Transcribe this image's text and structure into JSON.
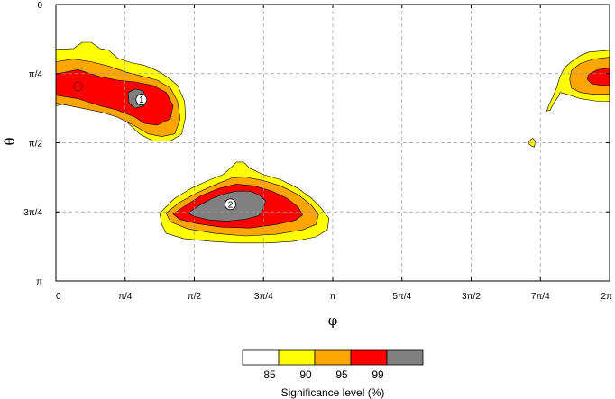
{
  "chart_data": {
    "type": "heatmap",
    "xlabel": "φ",
    "ylabel": "θ",
    "xlim": [
      0,
      6.283185
    ],
    "ylim": [
      0,
      3.141593
    ],
    "y_inverted": true,
    "grid": true,
    "x_ticks": [
      {
        "value": 0,
        "label": "0"
      },
      {
        "value": 0.785398,
        "label": "π/4"
      },
      {
        "value": 1.570796,
        "label": "π/2"
      },
      {
        "value": 2.356194,
        "label": "3π/4"
      },
      {
        "value": 3.141593,
        "label": "π"
      },
      {
        "value": 3.926991,
        "label": "5π/4"
      },
      {
        "value": 4.712389,
        "label": "3π/2"
      },
      {
        "value": 5.497787,
        "label": "7π/4"
      },
      {
        "value": 6.283185,
        "label": "2π"
      }
    ],
    "y_ticks": [
      {
        "value": 0,
        "label": "0"
      },
      {
        "value": 0.785398,
        "label": "π/4"
      },
      {
        "value": 1.570796,
        "label": "π/2"
      },
      {
        "value": 2.356194,
        "label": "3π/4"
      },
      {
        "value": 3.141593,
        "label": "π"
      }
    ],
    "levels": [
      {
        "threshold": 85,
        "color": "#ffff00"
      },
      {
        "threshold": 90,
        "color": "#ffa500"
      },
      {
        "threshold": 95,
        "color": "#ff0000"
      },
      {
        "threshold": 99,
        "color": "#808080"
      }
    ],
    "below_threshold_color": "#ffffff",
    "legend": {
      "title": "Significance level (%)",
      "labels": [
        "85",
        "90",
        "95",
        "99"
      ],
      "placement": "bottom"
    },
    "regions": [
      {
        "id": "region-1",
        "contours": [
          {
            "level": 85,
            "points": [
              [
                0,
                0.51
              ],
              [
                0.2,
                0.5
              ],
              [
                0.3,
                0.43
              ],
              [
                0.4,
                0.43
              ],
              [
                0.5,
                0.5
              ],
              [
                0.6,
                0.52
              ],
              [
                0.7,
                0.61
              ],
              [
                0.85,
                0.66
              ],
              [
                1.0,
                0.69
              ],
              [
                1.1,
                0.73
              ],
              [
                1.2,
                0.78
              ],
              [
                1.3,
                0.85
              ],
              [
                1.38,
                0.92
              ],
              [
                1.46,
                1.1
              ],
              [
                1.47,
                1.28
              ],
              [
                1.43,
                1.47
              ],
              [
                1.3,
                1.55
              ],
              [
                1.1,
                1.55
              ],
              [
                0.95,
                1.47
              ],
              [
                0.8,
                1.33
              ],
              [
                0.55,
                1.2
              ],
              [
                0.3,
                1.17
              ],
              [
                0.1,
                1.13
              ],
              [
                0,
                1.15
              ]
            ]
          },
          {
            "level": 90,
            "points": [
              [
                0,
                0.65
              ],
              [
                0.2,
                0.62
              ],
              [
                0.4,
                0.65
              ],
              [
                0.6,
                0.7
              ],
              [
                0.8,
                0.77
              ],
              [
                1.0,
                0.82
              ],
              [
                1.15,
                0.86
              ],
              [
                1.3,
                0.95
              ],
              [
                1.38,
                1.1
              ],
              [
                1.41,
                1.3
              ],
              [
                1.35,
                1.47
              ],
              [
                1.2,
                1.5
              ],
              [
                1.05,
                1.47
              ],
              [
                0.9,
                1.38
              ],
              [
                0.7,
                1.28
              ],
              [
                0.5,
                1.22
              ],
              [
                0.25,
                1.17
              ],
              [
                0,
                1.12
              ]
            ]
          },
          {
            "level": 95,
            "points": [
              [
                0,
                0.79
              ],
              [
                0.25,
                0.74
              ],
              [
                0.5,
                0.82
              ],
              [
                0.7,
                0.86
              ],
              [
                0.9,
                0.88
              ],
              [
                1.1,
                0.92
              ],
              [
                1.25,
                1.0
              ],
              [
                1.33,
                1.15
              ],
              [
                1.3,
                1.3
              ],
              [
                1.15,
                1.37
              ],
              [
                1.0,
                1.35
              ],
              [
                0.9,
                1.28
              ],
              [
                0.7,
                1.2
              ],
              [
                0.5,
                1.15
              ],
              [
                0.25,
                1.07
              ],
              [
                0,
                1.03
              ]
            ]
          },
          {
            "level": 99,
            "points": [
              [
                0.82,
                1.0
              ],
              [
                0.9,
                0.96
              ],
              [
                0.99,
                0.98
              ],
              [
                1.02,
                1.06
              ],
              [
                1.0,
                1.15
              ],
              [
                0.9,
                1.18
              ],
              [
                0.83,
                1.12
              ]
            ]
          }
        ],
        "marker": {
          "label": "1",
          "x": 0.97,
          "y": 1.08
        }
      },
      {
        "id": "region-2",
        "contours": [
          {
            "level": 85,
            "points": [
              [
                1.18,
                2.37
              ],
              [
                1.35,
                2.2
              ],
              [
                1.55,
                2.08
              ],
              [
                1.75,
                1.99
              ],
              [
                1.9,
                1.93
              ],
              [
                2.0,
                1.84
              ],
              [
                2.05,
                1.79
              ],
              [
                2.13,
                1.79
              ],
              [
                2.2,
                1.86
              ],
              [
                2.35,
                1.93
              ],
              [
                2.55,
                1.99
              ],
              [
                2.75,
                2.09
              ],
              [
                2.9,
                2.2
              ],
              [
                3.0,
                2.3
              ],
              [
                3.1,
                2.43
              ],
              [
                3.08,
                2.56
              ],
              [
                2.95,
                2.64
              ],
              [
                2.7,
                2.69
              ],
              [
                2.4,
                2.71
              ],
              [
                2.05,
                2.71
              ],
              [
                1.75,
                2.69
              ],
              [
                1.45,
                2.66
              ],
              [
                1.25,
                2.6
              ],
              [
                1.2,
                2.5
              ]
            ]
          },
          {
            "level": 90,
            "points": [
              [
                1.25,
                2.37
              ],
              [
                1.4,
                2.25
              ],
              [
                1.6,
                2.14
              ],
              [
                1.8,
                2.05
              ],
              [
                2.0,
                1.97
              ],
              [
                2.15,
                1.96
              ],
              [
                2.35,
                2.0
              ],
              [
                2.55,
                2.06
              ],
              [
                2.75,
                2.16
              ],
              [
                2.9,
                2.28
              ],
              [
                2.98,
                2.39
              ],
              [
                2.95,
                2.5
              ],
              [
                2.8,
                2.56
              ],
              [
                2.5,
                2.61
              ],
              [
                2.15,
                2.63
              ],
              [
                1.8,
                2.6
              ],
              [
                1.5,
                2.55
              ],
              [
                1.3,
                2.47
              ]
            ]
          },
          {
            "level": 95,
            "points": [
              [
                1.33,
                2.38
              ],
              [
                1.48,
                2.28
              ],
              [
                1.65,
                2.17
              ],
              [
                1.85,
                2.09
              ],
              [
                2.05,
                2.04
              ],
              [
                2.25,
                2.06
              ],
              [
                2.45,
                2.12
              ],
              [
                2.62,
                2.2
              ],
              [
                2.75,
                2.3
              ],
              [
                2.8,
                2.39
              ],
              [
                2.72,
                2.45
              ],
              [
                2.5,
                2.5
              ],
              [
                2.2,
                2.54
              ],
              [
                1.88,
                2.53
              ],
              [
                1.6,
                2.49
              ],
              [
                1.4,
                2.44
              ]
            ]
          },
          {
            "level": 99,
            "points": [
              [
                1.5,
                2.37
              ],
              [
                1.63,
                2.28
              ],
              [
                1.78,
                2.2
              ],
              [
                1.92,
                2.15
              ],
              [
                2.05,
                2.12
              ],
              [
                2.2,
                2.12
              ],
              [
                2.3,
                2.16
              ],
              [
                2.38,
                2.23
              ],
              [
                2.35,
                2.33
              ],
              [
                2.3,
                2.4
              ],
              [
                2.15,
                2.44
              ],
              [
                1.95,
                2.46
              ],
              [
                1.75,
                2.45
              ],
              [
                1.58,
                2.41
              ]
            ]
          }
        ],
        "marker": {
          "label": "2",
          "x": 1.98,
          "y": 2.27
        }
      },
      {
        "id": "region-3",
        "contours": [
          {
            "level": 85,
            "points": [
              [
                6.283,
                0.52
              ],
              [
                6.05,
                0.54
              ],
              [
                5.95,
                0.58
              ],
              [
                5.85,
                0.65
              ],
              [
                5.77,
                0.72
              ],
              [
                5.72,
                0.82
              ],
              [
                5.68,
                0.95
              ],
              [
                5.64,
                1.05
              ],
              [
                5.6,
                1.13
              ],
              [
                5.57,
                1.21
              ],
              [
                5.61,
                1.2
              ],
              [
                5.65,
                1.12
              ],
              [
                5.7,
                1.05
              ],
              [
                5.72,
                1.0
              ],
              [
                5.8,
                1.02
              ],
              [
                5.95,
                1.07
              ],
              [
                6.15,
                1.1
              ],
              [
                6.283,
                1.1
              ]
            ]
          },
          {
            "level": 90,
            "points": [
              [
                6.283,
                0.6
              ],
              [
                6.1,
                0.62
              ],
              [
                5.95,
                0.67
              ],
              [
                5.85,
                0.75
              ],
              [
                5.83,
                0.85
              ],
              [
                5.85,
                0.95
              ],
              [
                5.95,
                1.0
              ],
              [
                6.1,
                1.02
              ],
              [
                6.283,
                1.02
              ]
            ]
          },
          {
            "level": 95,
            "points": [
              [
                6.283,
                0.72
              ],
              [
                6.15,
                0.74
              ],
              [
                6.05,
                0.79
              ],
              [
                6.03,
                0.85
              ],
              [
                6.08,
                0.9
              ],
              [
                6.2,
                0.92
              ],
              [
                6.283,
                0.92
              ]
            ]
          },
          {
            "level": 85,
            "points": [
              [
                5.37,
                1.55
              ],
              [
                5.41,
                1.52
              ],
              [
                5.44,
                1.55
              ],
              [
                5.43,
                1.62
              ],
              [
                5.4,
                1.61
              ],
              [
                5.36,
                1.58
              ]
            ]
          }
        ]
      }
    ],
    "extra_patches": [
      {
        "level": 95,
        "center": [
          0.25,
          0.93
        ],
        "r": 0.05
      }
    ]
  }
}
